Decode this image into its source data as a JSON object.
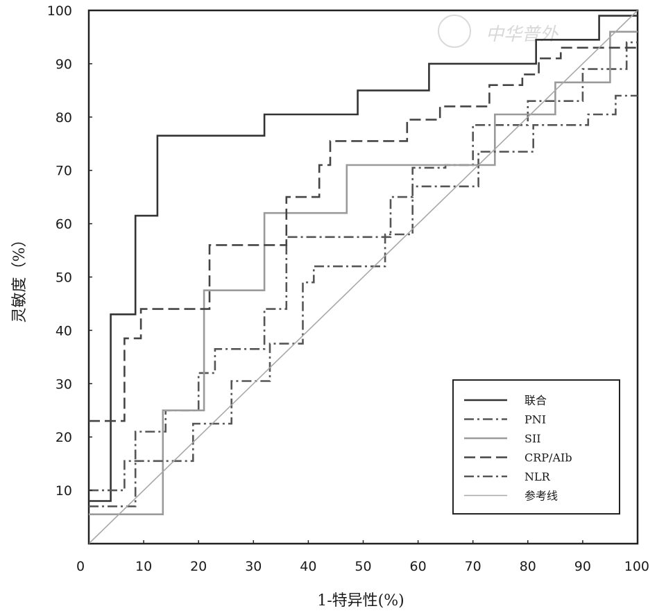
{
  "watermark": "中华普外",
  "chart_data": {
    "type": "line",
    "title": "",
    "xlabel": "1-特异性(%)",
    "ylabel": "灵敏度（%）",
    "xlim": [
      0,
      100
    ],
    "ylim": [
      0,
      100
    ],
    "xticks": [
      0,
      10,
      20,
      30,
      40,
      50,
      60,
      70,
      80,
      90,
      100
    ],
    "yticks": [
      10,
      20,
      30,
      40,
      50,
      60,
      70,
      80,
      90,
      100
    ],
    "grid": false,
    "legend_position": "bottom-right",
    "series": [
      {
        "name": "联合",
        "style": "solid",
        "color": "#333333",
        "x": [
          0,
          4,
          4,
          8.5,
          8.5,
          12.5,
          12.5,
          32,
          32,
          49,
          49,
          62,
          62,
          81.5,
          81.5,
          93,
          93,
          100
        ],
        "y": [
          8,
          8,
          43,
          43,
          61.5,
          61.5,
          76.5,
          76.5,
          80.5,
          80.5,
          85,
          85,
          90,
          90,
          94.5,
          94.5,
          99,
          99
        ]
      },
      {
        "name": "PNI",
        "style": "dashdot",
        "color": "#555555",
        "x": [
          0,
          8.5,
          8.5,
          14,
          14,
          20,
          20,
          23,
          23,
          32,
          32,
          36,
          36,
          40,
          40,
          47,
          47,
          55,
          55,
          59,
          59,
          65,
          65,
          70,
          70,
          80,
          80,
          90,
          90,
          98,
          98,
          100
        ],
        "y": [
          7,
          7,
          21,
          21,
          25,
          25,
          32,
          32,
          36.5,
          36.5,
          44,
          44,
          57.5,
          57.5,
          57.5,
          57.5,
          57.5,
          57.5,
          65,
          65,
          70.5,
          70.5,
          71,
          71,
          78.5,
          78.5,
          83,
          83,
          89,
          89,
          94,
          94
        ]
      },
      {
        "name": "SII",
        "style": "solid",
        "color": "#9a9a9a",
        "x": [
          0,
          13.5,
          13.5,
          21,
          21,
          32,
          32,
          47,
          47,
          74,
          74,
          85,
          85,
          95,
          95,
          100
        ],
        "y": [
          5.5,
          5.5,
          25,
          25,
          47.5,
          47.5,
          62,
          62,
          71,
          71,
          80.5,
          80.5,
          86.5,
          86.5,
          96,
          96
        ]
      },
      {
        "name": "CRP/AIb",
        "style": "dashed",
        "color": "#444444",
        "x": [
          0,
          6.5,
          6.5,
          9.5,
          9.5,
          13,
          13,
          22,
          22,
          36,
          36,
          42,
          42,
          44,
          44,
          58,
          58,
          64,
          64,
          73,
          73,
          79,
          79,
          82,
          82,
          86,
          86,
          96,
          96,
          100
        ],
        "y": [
          23,
          23,
          38.5,
          38.5,
          44,
          44,
          44,
          44,
          56,
          56,
          65,
          65,
          71,
          71,
          75.5,
          75.5,
          79.5,
          79.5,
          82,
          82,
          86,
          86,
          88,
          88,
          91,
          91,
          93,
          93,
          93,
          93
        ]
      },
      {
        "name": "NLR",
        "style": "dashdot",
        "color": "#555555",
        "x": [
          0,
          6.5,
          6.5,
          19,
          19,
          26,
          26,
          33,
          33,
          39,
          39,
          41,
          41,
          54,
          54,
          59,
          59,
          71,
          71,
          81,
          81,
          91,
          91,
          96,
          96,
          100
        ],
        "y": [
          10,
          10,
          15.5,
          15.5,
          22.5,
          22.5,
          30.5,
          30.5,
          37.5,
          37.5,
          49,
          49,
          52,
          52,
          58,
          58,
          67,
          67,
          73.5,
          73.5,
          78.5,
          78.5,
          80.5,
          80.5,
          84,
          84
        ]
      },
      {
        "name": "参考线",
        "style": "solid",
        "color": "#a8a8a8",
        "x": [
          0,
          100
        ],
        "y": [
          0,
          100
        ]
      }
    ]
  }
}
